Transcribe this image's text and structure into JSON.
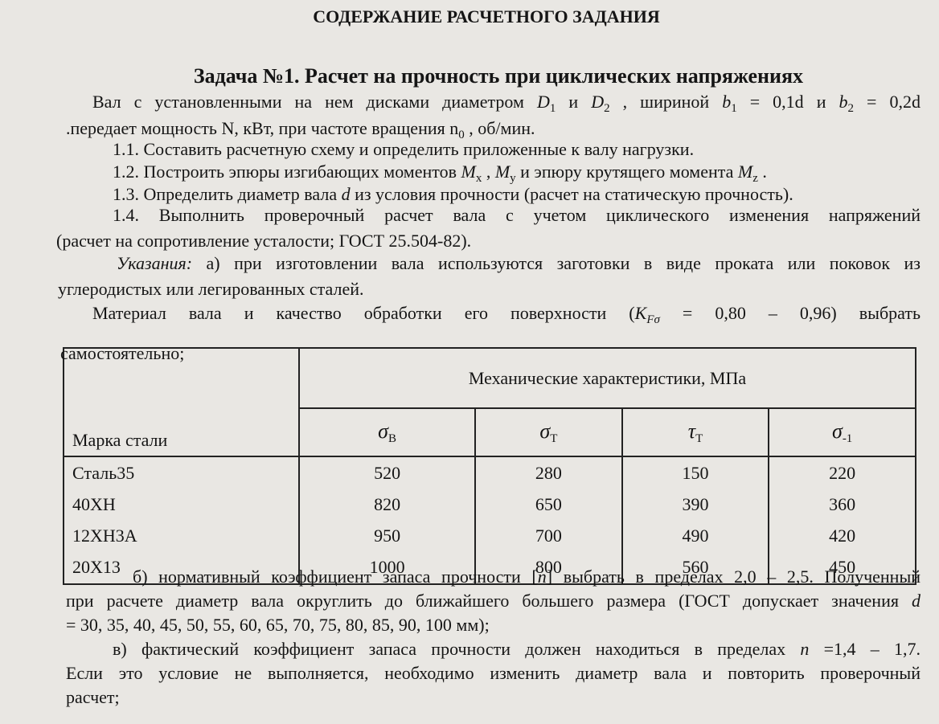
{
  "title": "СОДЕРЖАНИЕ РАСЧЕТНОГО ЗАДАНИЯ",
  "task_title": "Задача №1. Расчет на прочность при циклических напряжениях",
  "lines": [
    [
      "Вал с установленными на нем дисками диаметром ",
      "D",
      "1",
      " и ",
      "D",
      "2",
      " , шириной ",
      "b",
      "1",
      " = 0,1d и ",
      "b",
      "2",
      " = 0,2d"
    ],
    [
      ".передает мощность N, кВт, при частоте вращения n",
      "0",
      " , об/мин."
    ],
    [
      "1.1. Составить расчетную схему и определить приложенные к валу нагрузки."
    ],
    [
      "1.2. Построить эпюры изгибающих моментов ",
      "M",
      "x",
      " , ",
      "M",
      "y",
      " и эпюру крутящего момента ",
      "M",
      "z",
      " ."
    ],
    [
      "1.3. Определить диаметр вала ",
      "d",
      " из условия прочности (расчет на статическую прочность)."
    ],
    [
      "1.4. Выполнить проверочный расчет вала с учетом циклического изменения напряжений"
    ],
    [
      "(расчет на сопротивление усталости; ГОСТ 25.504-82)."
    ],
    [
      "Указания:",
      " а) при изготовлении вала используются заготовки в виде проката или поковок из"
    ],
    [
      "углеродистых или легированных сталей."
    ],
    [
      "Материал вала и качество обработки его поверхности (",
      "K",
      "Fσ",
      " = 0,80 – 0,96) выбрать"
    ],
    [
      "самостоятельно;"
    ],
    [
      "б) нормативный коэффициент запаса прочности [",
      "n",
      "] выбрать в пределах 2,0 – 2,5. Полученный"
    ],
    [
      "при расчете диаметр вала округлить до ближайшего большего размера (ГОСТ допускает значения ",
      "d"
    ],
    [
      "= 30, 35, 40, 45, 50, 55, 60, 65, 70, 75, 80, 85, 90, 100 мм);"
    ],
    [
      "в) фактический коэффициент запаса прочности должен находиться в пределах ",
      "n",
      " =1,4 – 1,7."
    ],
    [
      "Если это условие не выполняется, необходимо изменить диаметр вала и повторить проверочный"
    ],
    [
      "расчет;"
    ]
  ],
  "table": {
    "group_header": "Механические характеристики, МПа",
    "row_header": "Марка стали",
    "columns": [
      [
        "σ",
        "В"
      ],
      [
        "σ",
        "Т"
      ],
      [
        "τ",
        "Т"
      ],
      [
        "σ",
        "-1"
      ]
    ],
    "rows": [
      [
        "Сталь35",
        520,
        280,
        150,
        220
      ],
      [
        "40ХН",
        820,
        650,
        390,
        360
      ],
      [
        "12ХН3А",
        950,
        700,
        490,
        420
      ],
      [
        "20Х13",
        1000,
        800,
        560,
        450
      ]
    ]
  }
}
